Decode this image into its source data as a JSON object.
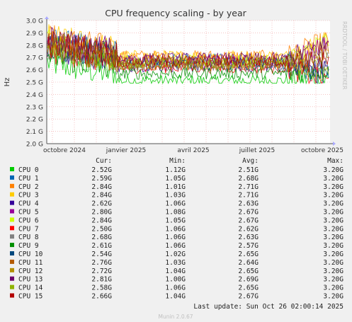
{
  "chart_data": {
    "type": "line",
    "title": "CPU frequency scaling - by year",
    "ylabel": "Hz",
    "side_label": "RRDTOOL / TOBI OETIKER",
    "ylim": [
      2.0,
      3.0
    ],
    "y_ticks": [
      2.0,
      2.1,
      2.2,
      2.3,
      2.4,
      2.5,
      2.6,
      2.7,
      2.8,
      2.9,
      3.0
    ],
    "y_tick_labels": [
      "2.0 G",
      "2.1 G",
      "2.2 G",
      "2.3 G",
      "2.4 G",
      "2.5 G",
      "2.6 G",
      "2.7 G",
      "2.8 G",
      "2.9 G",
      "3.0 G"
    ],
    "x_tick_labels": [
      "octobre 2024",
      "janvier 2025",
      "avril 2025",
      "juillet 2025",
      "octobre 2025"
    ],
    "grid": true,
    "legend_columns": [
      "Cur:",
      "Min:",
      "Avg:",
      "Max:"
    ],
    "series": [
      {
        "name": "CPU 0",
        "color": "#00cc00",
        "cur": "2.52G",
        "min": "1.12G",
        "avg": "2.51G",
        "max": "3.20G"
      },
      {
        "name": "CPU 1",
        "color": "#0066b3",
        "cur": "2.59G",
        "min": "1.05G",
        "avg": "2.68G",
        "max": "3.20G"
      },
      {
        "name": "CPU 2",
        "color": "#ff8000",
        "cur": "2.84G",
        "min": "1.01G",
        "avg": "2.71G",
        "max": "3.20G"
      },
      {
        "name": "CPU 3",
        "color": "#ffcc00",
        "cur": "2.84G",
        "min": "1.03G",
        "avg": "2.71G",
        "max": "3.20G"
      },
      {
        "name": "CPU 4",
        "color": "#330099",
        "cur": "2.62G",
        "min": "1.06G",
        "avg": "2.63G",
        "max": "3.20G"
      },
      {
        "name": "CPU 5",
        "color": "#990099",
        "cur": "2.80G",
        "min": "1.08G",
        "avg": "2.67G",
        "max": "3.20G"
      },
      {
        "name": "CPU 6",
        "color": "#ccff00",
        "cur": "2.84G",
        "min": "1.05G",
        "avg": "2.67G",
        "max": "3.20G"
      },
      {
        "name": "CPU 7",
        "color": "#ff0000",
        "cur": "2.50G",
        "min": "1.06G",
        "avg": "2.62G",
        "max": "3.20G"
      },
      {
        "name": "CPU 8",
        "color": "#808080",
        "cur": "2.68G",
        "min": "1.06G",
        "avg": "2.63G",
        "max": "3.20G"
      },
      {
        "name": "CPU 9",
        "color": "#008f00",
        "cur": "2.61G",
        "min": "1.06G",
        "avg": "2.57G",
        "max": "3.20G"
      },
      {
        "name": "CPU 10",
        "color": "#00487d",
        "cur": "2.54G",
        "min": "1.02G",
        "avg": "2.65G",
        "max": "3.20G"
      },
      {
        "name": "CPU 11",
        "color": "#b35a00",
        "cur": "2.76G",
        "min": "1.03G",
        "avg": "2.64G",
        "max": "3.20G"
      },
      {
        "name": "CPU 12",
        "color": "#b38f00",
        "cur": "2.72G",
        "min": "1.04G",
        "avg": "2.65G",
        "max": "3.20G"
      },
      {
        "name": "CPU 13",
        "color": "#6b006b",
        "cur": "2.81G",
        "min": "1.00G",
        "avg": "2.69G",
        "max": "3.20G"
      },
      {
        "name": "CPU 14",
        "color": "#8fb300",
        "cur": "2.58G",
        "min": "1.06G",
        "avg": "2.65G",
        "max": "3.20G"
      },
      {
        "name": "CPU 15",
        "color": "#b30000",
        "cur": "2.66G",
        "min": "1.04G",
        "avg": "2.67G",
        "max": "3.20G"
      }
    ],
    "last_update": "Last update: Sun Oct 26 02:00:14 2025",
    "footer": "Munin 2.0.67"
  }
}
